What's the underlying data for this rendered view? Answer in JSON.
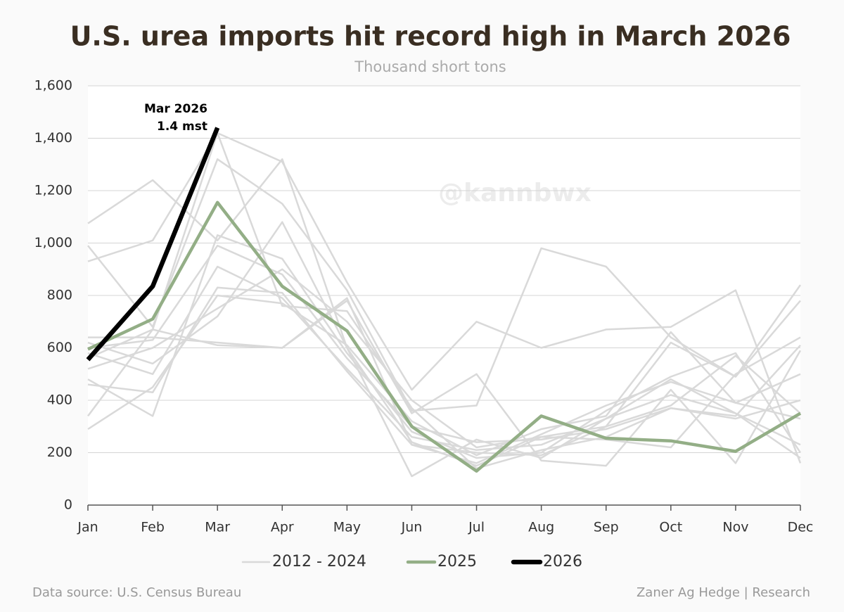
{
  "chart_data": {
    "type": "line",
    "title": "U.S. urea imports hit record high in March 2026",
    "subtitle": "Thousand short tons",
    "watermark": "@kannbwx",
    "annotations": [
      "Mar 2026",
      "1.4 mst"
    ],
    "source": "Data source: U.S. Census Bureau",
    "credit": "Zaner Ag Hedge | Research",
    "categories": [
      "Jan",
      "Feb",
      "Mar",
      "Apr",
      "May",
      "Jun",
      "Jul",
      "Aug",
      "Sep",
      "Oct",
      "Nov",
      "Dec"
    ],
    "ylim": [
      0,
      1600
    ],
    "yticks": [
      0,
      200,
      400,
      600,
      800,
      {
        "value": 1000,
        "label": "1,000"
      },
      {
        "value": 1200,
        "label": "1,200"
      },
      {
        "value": 1400,
        "label": "1,400"
      },
      {
        "value": 1600,
        "label": "1,600"
      }
    ],
    "grid": true,
    "legend": "bottom",
    "series": [
      {
        "name": "2012 - 2024",
        "color": "#d9d9d9",
        "values": [
          [
            1075,
            1240,
            1010,
            1320,
            600,
            110,
            250,
            180,
            330,
            480,
            350,
            180
          ],
          [
            990,
            680,
            1320,
            1150,
            820,
            360,
            380,
            980,
            910,
            640,
            490,
            840
          ],
          [
            930,
            1010,
            1420,
            1310,
            850,
            440,
            700,
            600,
            670,
            680,
            820,
            160
          ],
          [
            640,
            640,
            620,
            600,
            780,
            350,
            500,
            170,
            150,
            440,
            160,
            590
          ],
          [
            620,
            540,
            720,
            1080,
            600,
            240,
            150,
            260,
            300,
            620,
            490,
            780
          ],
          [
            600,
            630,
            990,
            880,
            560,
            300,
            240,
            250,
            290,
            370,
            330,
            400
          ],
          [
            580,
            500,
            910,
            790,
            520,
            260,
            210,
            230,
            330,
            420,
            350,
            230
          ],
          [
            480,
            340,
            1030,
            940,
            580,
            280,
            180,
            200,
            360,
            490,
            580,
            200
          ],
          [
            460,
            430,
            830,
            810,
            510,
            230,
            160,
            270,
            380,
            470,
            390,
            330
          ],
          [
            340,
            670,
            1420,
            760,
            740,
            370,
            140,
            210,
            260,
            370,
            340,
            610
          ],
          [
            290,
            450,
            800,
            770,
            610,
            320,
            190,
            290,
            340,
            660,
            390,
            500
          ],
          [
            560,
            670,
            610,
            600,
            790,
            230,
            200,
            190,
            300,
            380,
            570,
            350
          ],
          [
            520,
            600,
            750,
            900,
            700,
            400,
            220,
            260,
            250,
            220,
            500,
            640
          ]
        ]
      },
      {
        "name": "2025",
        "color": "#93ae86",
        "values": [
          595,
          710,
          1155,
          835,
          665,
          300,
          130,
          340,
          255,
          245,
          205,
          350
        ]
      },
      {
        "name": "2026",
        "color": "#000000",
        "values": [
          555,
          835,
          1440,
          null,
          null,
          null,
          null,
          null,
          null,
          null,
          null,
          null
        ]
      }
    ]
  }
}
